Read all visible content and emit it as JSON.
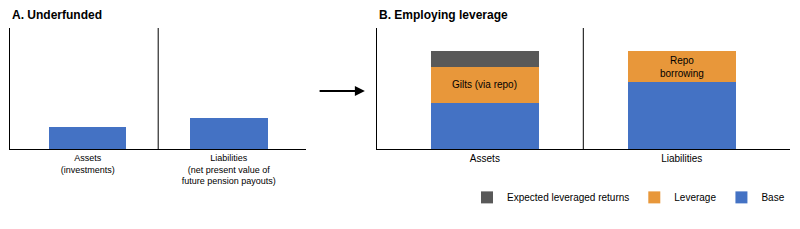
{
  "chart_data": [
    {
      "type": "bar",
      "title": "A. Underfunded",
      "categories": [
        "Assets\n(investments)",
        "Liabilities\n(net present value of\nfuture pension payouts)"
      ],
      "values": [
        0.18,
        0.26
      ],
      "color": "#4472C4",
      "ylim": [
        0,
        1.0
      ],
      "tick_labels": "x",
      "grid": false
    },
    {
      "type": "bar",
      "title": "B. Employing leverage",
      "categories": [
        "Assets",
        "Liabilities"
      ],
      "stacked": true,
      "series": [
        {
          "name": "Base",
          "color": "#4472C4",
          "values": [
            0.38,
            0.55
          ]
        },
        {
          "name": "Leverage",
          "color": "#E8973A",
          "values": [
            0.3,
            0.26
          ]
        },
        {
          "name": "Expected leveraged returns",
          "color": "#595959",
          "values": [
            0.13,
            null
          ]
        }
      ],
      "annotations": [
        {
          "text": "Gilts (via repo)",
          "x": "Assets",
          "series": "Leverage"
        },
        {
          "text": "Repo\nborrowing",
          "x": "Liabilities",
          "series": "Leverage"
        }
      ],
      "ylim": [
        0,
        1.0
      ],
      "tick_labels": "x",
      "grid": false,
      "legend": "lower right"
    }
  ]
}
